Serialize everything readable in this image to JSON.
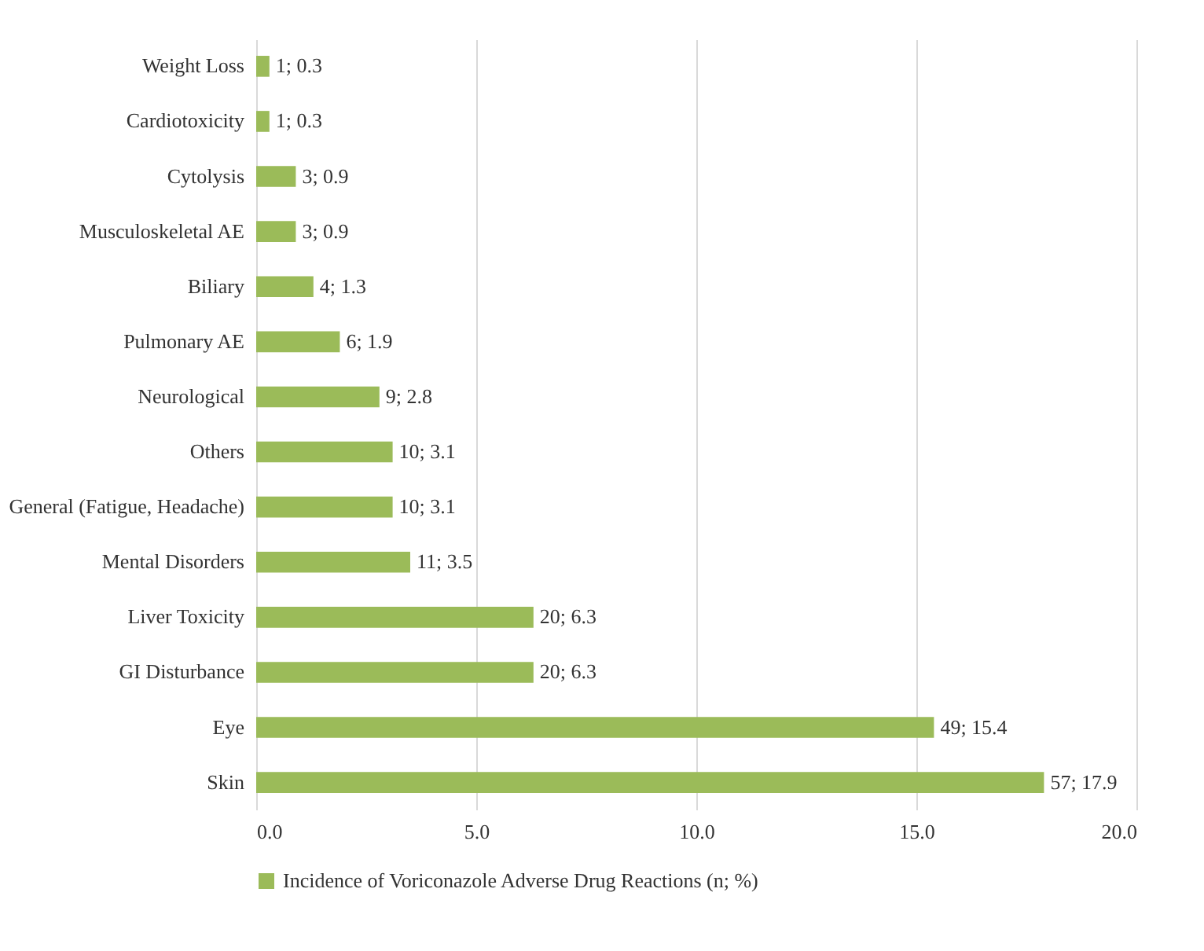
{
  "chart_data": {
    "type": "bar",
    "orientation": "horizontal",
    "categories": [
      "Weight Loss",
      "Cardiotoxicity",
      "Cytolysis",
      "Musculoskeletal AE",
      "Biliary",
      "Pulmonary AE",
      "Neurological",
      "Others",
      "General (Fatigue, Headache)",
      "Mental Disorders",
      "Liver Toxicity",
      "GI Disturbance",
      "Eye",
      "Skin"
    ],
    "series": [
      {
        "name": "Incidence of Voriconazole  Adverse Drug Reactions (n; %)",
        "color": "#9bbb59",
        "values": [
          0.3,
          0.3,
          0.9,
          0.9,
          1.3,
          1.9,
          2.8,
          3.1,
          3.1,
          3.5,
          6.3,
          6.3,
          15.4,
          17.9
        ],
        "value_labels": [
          "1; 0.3",
          "1; 0.3",
          "3; 0.9",
          "3; 0.9",
          "4; 1.3",
          "6; 1.9",
          "9; 2.8",
          "10; 3.1",
          "10; 3.1",
          "11; 3.5",
          "20; 6.3",
          "20; 6.3",
          "49; 15.4",
          "57; 17.9"
        ]
      }
    ],
    "xlim": [
      0,
      20
    ],
    "xticks": [
      {
        "value": 0,
        "label": "0.0"
      },
      {
        "value": 5,
        "label": "5.0"
      },
      {
        "value": 10,
        "label": "10.0"
      },
      {
        "value": 15,
        "label": "15.0"
      },
      {
        "value": 20,
        "label": "20.0"
      }
    ],
    "grid": "x",
    "legend": "bottom"
  }
}
